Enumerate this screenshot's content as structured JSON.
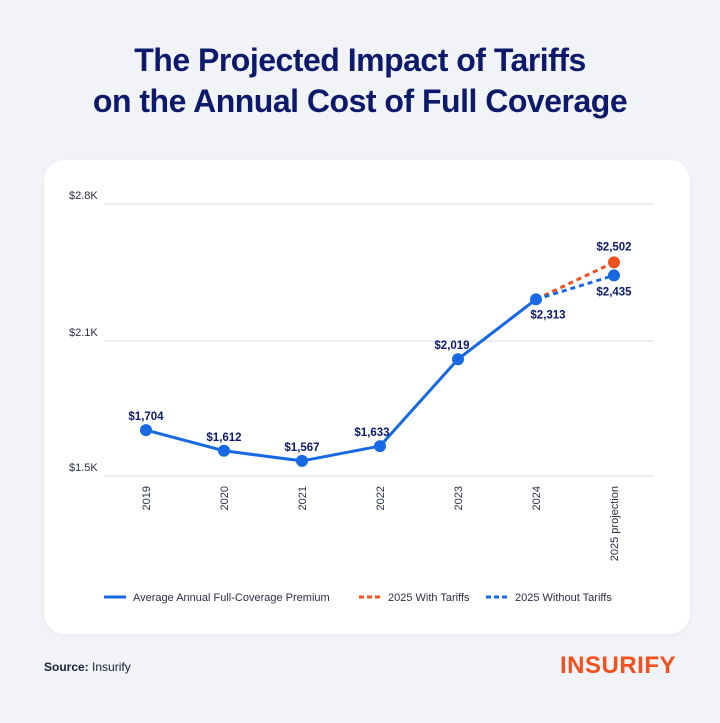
{
  "title": {
    "line1": "The Projected Impact of Tariffs",
    "line2": "on the Annual Cost of Full Coverage"
  },
  "footer": {
    "source_label": "Source:",
    "source_value": "Insurify",
    "logo": "INSURIFY"
  },
  "colors": {
    "title": "#0d1a6b",
    "series_main": "#1668e3",
    "with_tariffs": "#f0511f",
    "without_tariffs": "#1668e3",
    "grid": "#d9dce3",
    "logo": "#f0511f"
  },
  "chart_data": {
    "type": "line",
    "title": "The Projected Impact of Tariffs on the Annual Cost of Full Coverage",
    "xlabel": "",
    "ylabel": "",
    "categories": [
      "2019",
      "2020",
      "2021",
      "2022",
      "2023",
      "2024",
      "2025 projection"
    ],
    "y_ticks": [
      {
        "value": 1500,
        "label": "$1.5K"
      },
      {
        "value": 2100,
        "label": "$2.1K"
      },
      {
        "value": 2800,
        "label": "$2.8K"
      }
    ],
    "ylim": [
      1500,
      2800
    ],
    "grid": true,
    "legend_position": "bottom",
    "series": [
      {
        "name": "Average Annual Full-Coverage Premium",
        "style": "solid",
        "color": "#1668e3",
        "points": [
          {
            "x": "2019",
            "y": 1704,
            "label": "$1,704"
          },
          {
            "x": "2020",
            "y": 1612,
            "label": "$1,612"
          },
          {
            "x": "2021",
            "y": 1567,
            "label": "$1,567"
          },
          {
            "x": "2022",
            "y": 1633,
            "label": "$1,633"
          },
          {
            "x": "2023",
            "y": 2019,
            "label": "$2,019"
          },
          {
            "x": "2024",
            "y": 2313,
            "label": "$2,313"
          }
        ]
      },
      {
        "name": "2025 With Tariffs",
        "style": "dashed",
        "color": "#f0511f",
        "points": [
          {
            "x": "2024",
            "y": 2313,
            "label": ""
          },
          {
            "x": "2025 projection",
            "y": 2502,
            "label": "$2,502"
          }
        ]
      },
      {
        "name": "2025 Without Tariffs",
        "style": "dashed",
        "color": "#1668e3",
        "points": [
          {
            "x": "2024",
            "y": 2313,
            "label": ""
          },
          {
            "x": "2025 projection",
            "y": 2435,
            "label": "$2,435"
          }
        ]
      }
    ]
  }
}
